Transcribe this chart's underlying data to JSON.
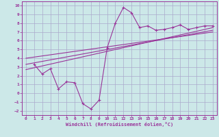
{
  "xlabel": "Windchill (Refroidissement éolien,°C)",
  "bg_color": "#cce8e8",
  "grid_color": "#aaaacc",
  "line_color": "#993399",
  "xlim": [
    -0.5,
    23.5
  ],
  "ylim": [
    -2.5,
    10.5
  ],
  "xticks": [
    0,
    1,
    2,
    3,
    4,
    5,
    6,
    7,
    8,
    9,
    10,
    11,
    12,
    13,
    14,
    15,
    16,
    17,
    18,
    19,
    20,
    21,
    22,
    23
  ],
  "yticks": [
    -2,
    -1,
    0,
    1,
    2,
    3,
    4,
    5,
    6,
    7,
    8,
    9,
    10
  ],
  "jagged_x": [
    1,
    2,
    3,
    4,
    5,
    6,
    7,
    8,
    9,
    10,
    11,
    12,
    13,
    14,
    15,
    16,
    17,
    18,
    19,
    20,
    21,
    22,
    23
  ],
  "jagged_y": [
    3.3,
    2.2,
    2.8,
    0.5,
    1.3,
    1.2,
    -1.2,
    -1.8,
    -0.8,
    5.2,
    8.0,
    9.8,
    9.2,
    7.5,
    7.7,
    7.2,
    7.3,
    7.5,
    7.8,
    7.3,
    7.5,
    7.7,
    7.7
  ],
  "line1_x": [
    0,
    23
  ],
  "line1_y": [
    2.7,
    7.5
  ],
  "line2_x": [
    0,
    23
  ],
  "line2_y": [
    3.3,
    7.2
  ],
  "line3_x": [
    0,
    23
  ],
  "line3_y": [
    4.0,
    7.0
  ]
}
